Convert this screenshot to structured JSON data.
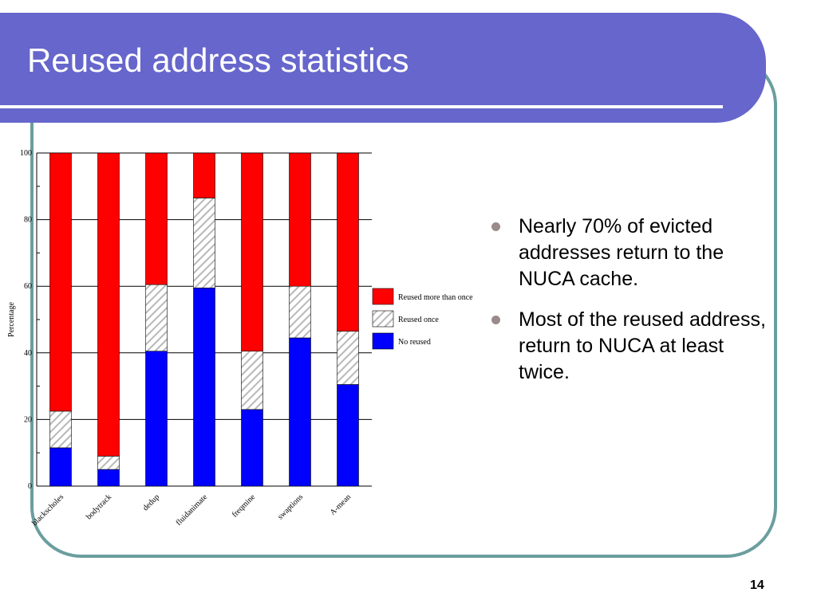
{
  "slide": {
    "title": "Reused address statistics",
    "page_number": "14",
    "bullets": [
      "Nearly 70% of evicted addresses return to the NUCA cache.",
      "Most of the reused address, return to NUCA at least twice."
    ],
    "colors": {
      "header": "#6666cc",
      "frame": "#6b9e9e",
      "bullet": "#9b8a8a"
    }
  },
  "chart_data": {
    "type": "bar",
    "stacked": true,
    "title": "",
    "xlabel": "",
    "ylabel": "Percentage",
    "ylim": [
      0,
      100
    ],
    "yticks": [
      0,
      20,
      40,
      60,
      80,
      100
    ],
    "grid": true,
    "legend_position": "right",
    "categories": [
      "blackscholes",
      "bodytrack",
      "dedup",
      "fluidanimate",
      "freqmine",
      "swaptions",
      "A-mean"
    ],
    "series": [
      {
        "name": "No reused",
        "color": "#0000ff",
        "pattern": "solid",
        "values": [
          11.5,
          5,
          40.5,
          59.5,
          23,
          44.5,
          30.5
        ]
      },
      {
        "name": "Reused once",
        "color": "#c8c8c8",
        "pattern": "hatch",
        "values": [
          11,
          4,
          20,
          27,
          17.5,
          15.5,
          16
        ]
      },
      {
        "name": "Reused more than once",
        "color": "#ff0000",
        "pattern": "solid",
        "values": [
          77.5,
          91,
          39.5,
          13.5,
          59.5,
          40,
          53.5
        ]
      }
    ],
    "legend_order": [
      "Reused more than once",
      "Reused once",
      "No reused"
    ]
  }
}
